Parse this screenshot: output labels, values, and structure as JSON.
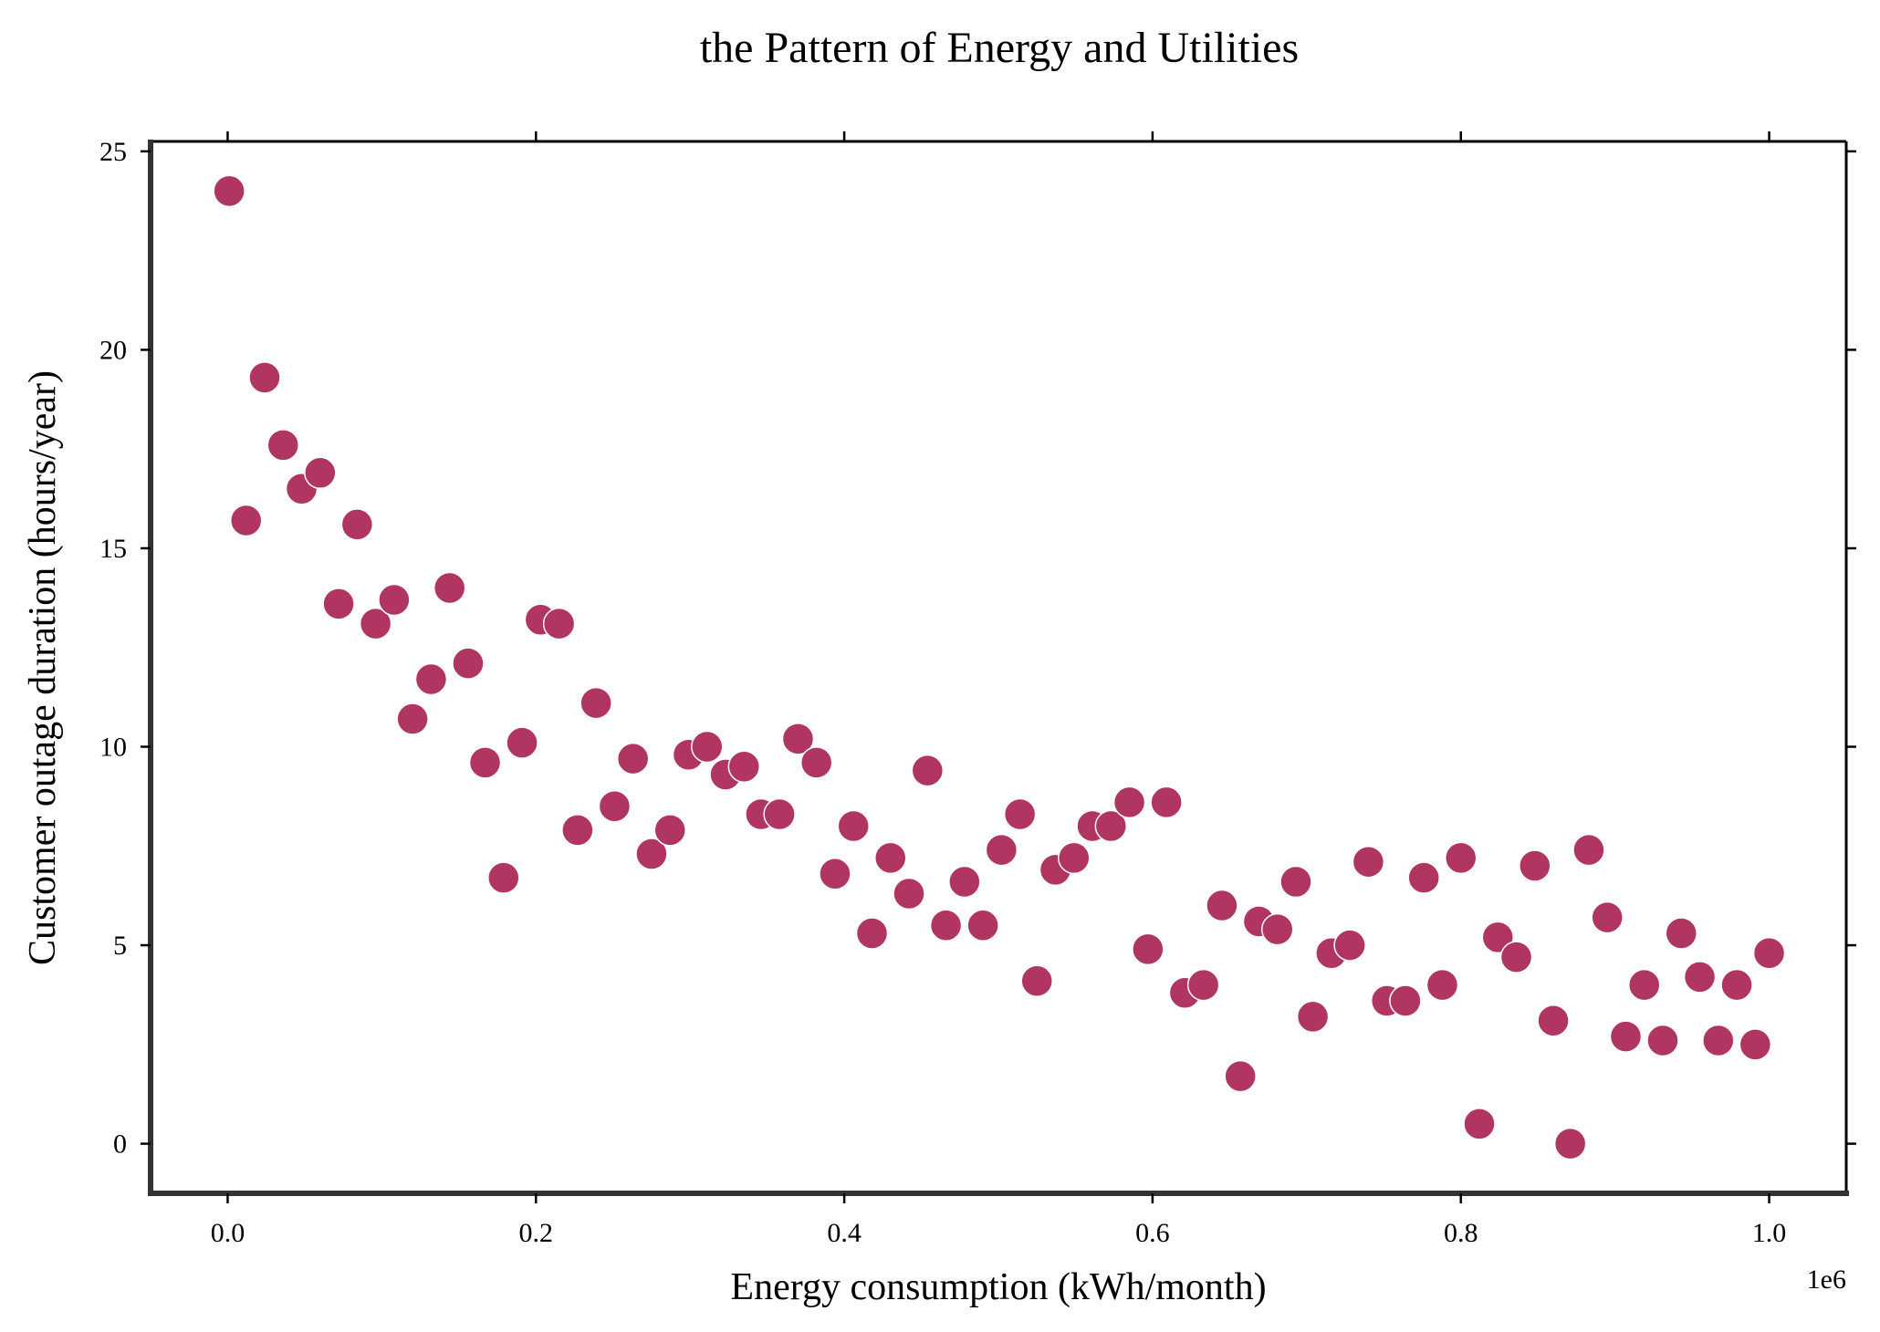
{
  "chart_data": {
    "type": "scatter",
    "title": "the Pattern of Energy and Utilities",
    "xlabel": "Energy consumption (kWh/month)",
    "ylabel": "Customer outage duration (hours/year)",
    "x_offset_label": "1e6",
    "xlim": [
      -50000,
      1050000
    ],
    "ylim": [
      -1.25,
      25.25
    ],
    "x_ticks": [
      0,
      200000,
      400000,
      600000,
      800000,
      1000000
    ],
    "x_tick_labels": [
      "0.0",
      "0.2",
      "0.4",
      "0.6",
      "0.8",
      "1.0"
    ],
    "y_ticks": [
      0,
      5,
      10,
      15,
      20,
      25
    ],
    "y_tick_labels": [
      "0",
      "5",
      "10",
      "15",
      "20",
      "25"
    ],
    "grid": false,
    "point_color": "#b03560",
    "x": [
      1000,
      12000,
      24000,
      36000,
      48000,
      60000,
      72000,
      84000,
      96000,
      108000,
      120000,
      132000,
      144000,
      156000,
      167000,
      179000,
      191000,
      203000,
      215000,
      227000,
      239000,
      251000,
      263000,
      275000,
      287000,
      299000,
      311000,
      323000,
      335000,
      346000,
      358000,
      370000,
      382000,
      394000,
      406000,
      418000,
      430000,
      442000,
      454000,
      466000,
      478000,
      490000,
      502000,
      514000,
      525000,
      537000,
      549000,
      561000,
      573000,
      585000,
      597000,
      609000,
      621000,
      633000,
      645000,
      657000,
      669000,
      681000,
      693000,
      704000,
      716000,
      728000,
      740000,
      752000,
      764000,
      776000,
      788000,
      800000,
      812000,
      824000,
      836000,
      848000,
      860000,
      871000,
      883000,
      895000,
      907000,
      919000,
      931000,
      943000,
      955000,
      967000,
      979000,
      991000,
      1000000
    ],
    "y": [
      24.0,
      15.7,
      19.3,
      17.6,
      16.5,
      16.9,
      13.6,
      15.6,
      13.1,
      13.7,
      10.7,
      11.7,
      14.0,
      12.1,
      9.6,
      6.7,
      10.1,
      13.2,
      13.1,
      7.9,
      11.1,
      8.5,
      9.7,
      7.3,
      7.9,
      9.8,
      10.0,
      9.3,
      9.5,
      8.3,
      8.3,
      10.2,
      9.6,
      6.8,
      8.0,
      5.3,
      7.2,
      6.3,
      9.4,
      5.5,
      6.6,
      5.5,
      7.4,
      8.3,
      4.1,
      6.9,
      7.2,
      8.0,
      8.0,
      8.6,
      4.9,
      8.6,
      3.8,
      4.0,
      6.0,
      1.7,
      5.6,
      5.4,
      6.6,
      3.2,
      4.8,
      5.0,
      7.1,
      3.6,
      3.6,
      6.7,
      4.0,
      7.2,
      0.5,
      5.2,
      4.7,
      7.0,
      3.1,
      0.0,
      7.4,
      5.7,
      2.7,
      4.0,
      2.6,
      5.3,
      4.2,
      2.6,
      4.0,
      2.5,
      4.8
    ]
  }
}
